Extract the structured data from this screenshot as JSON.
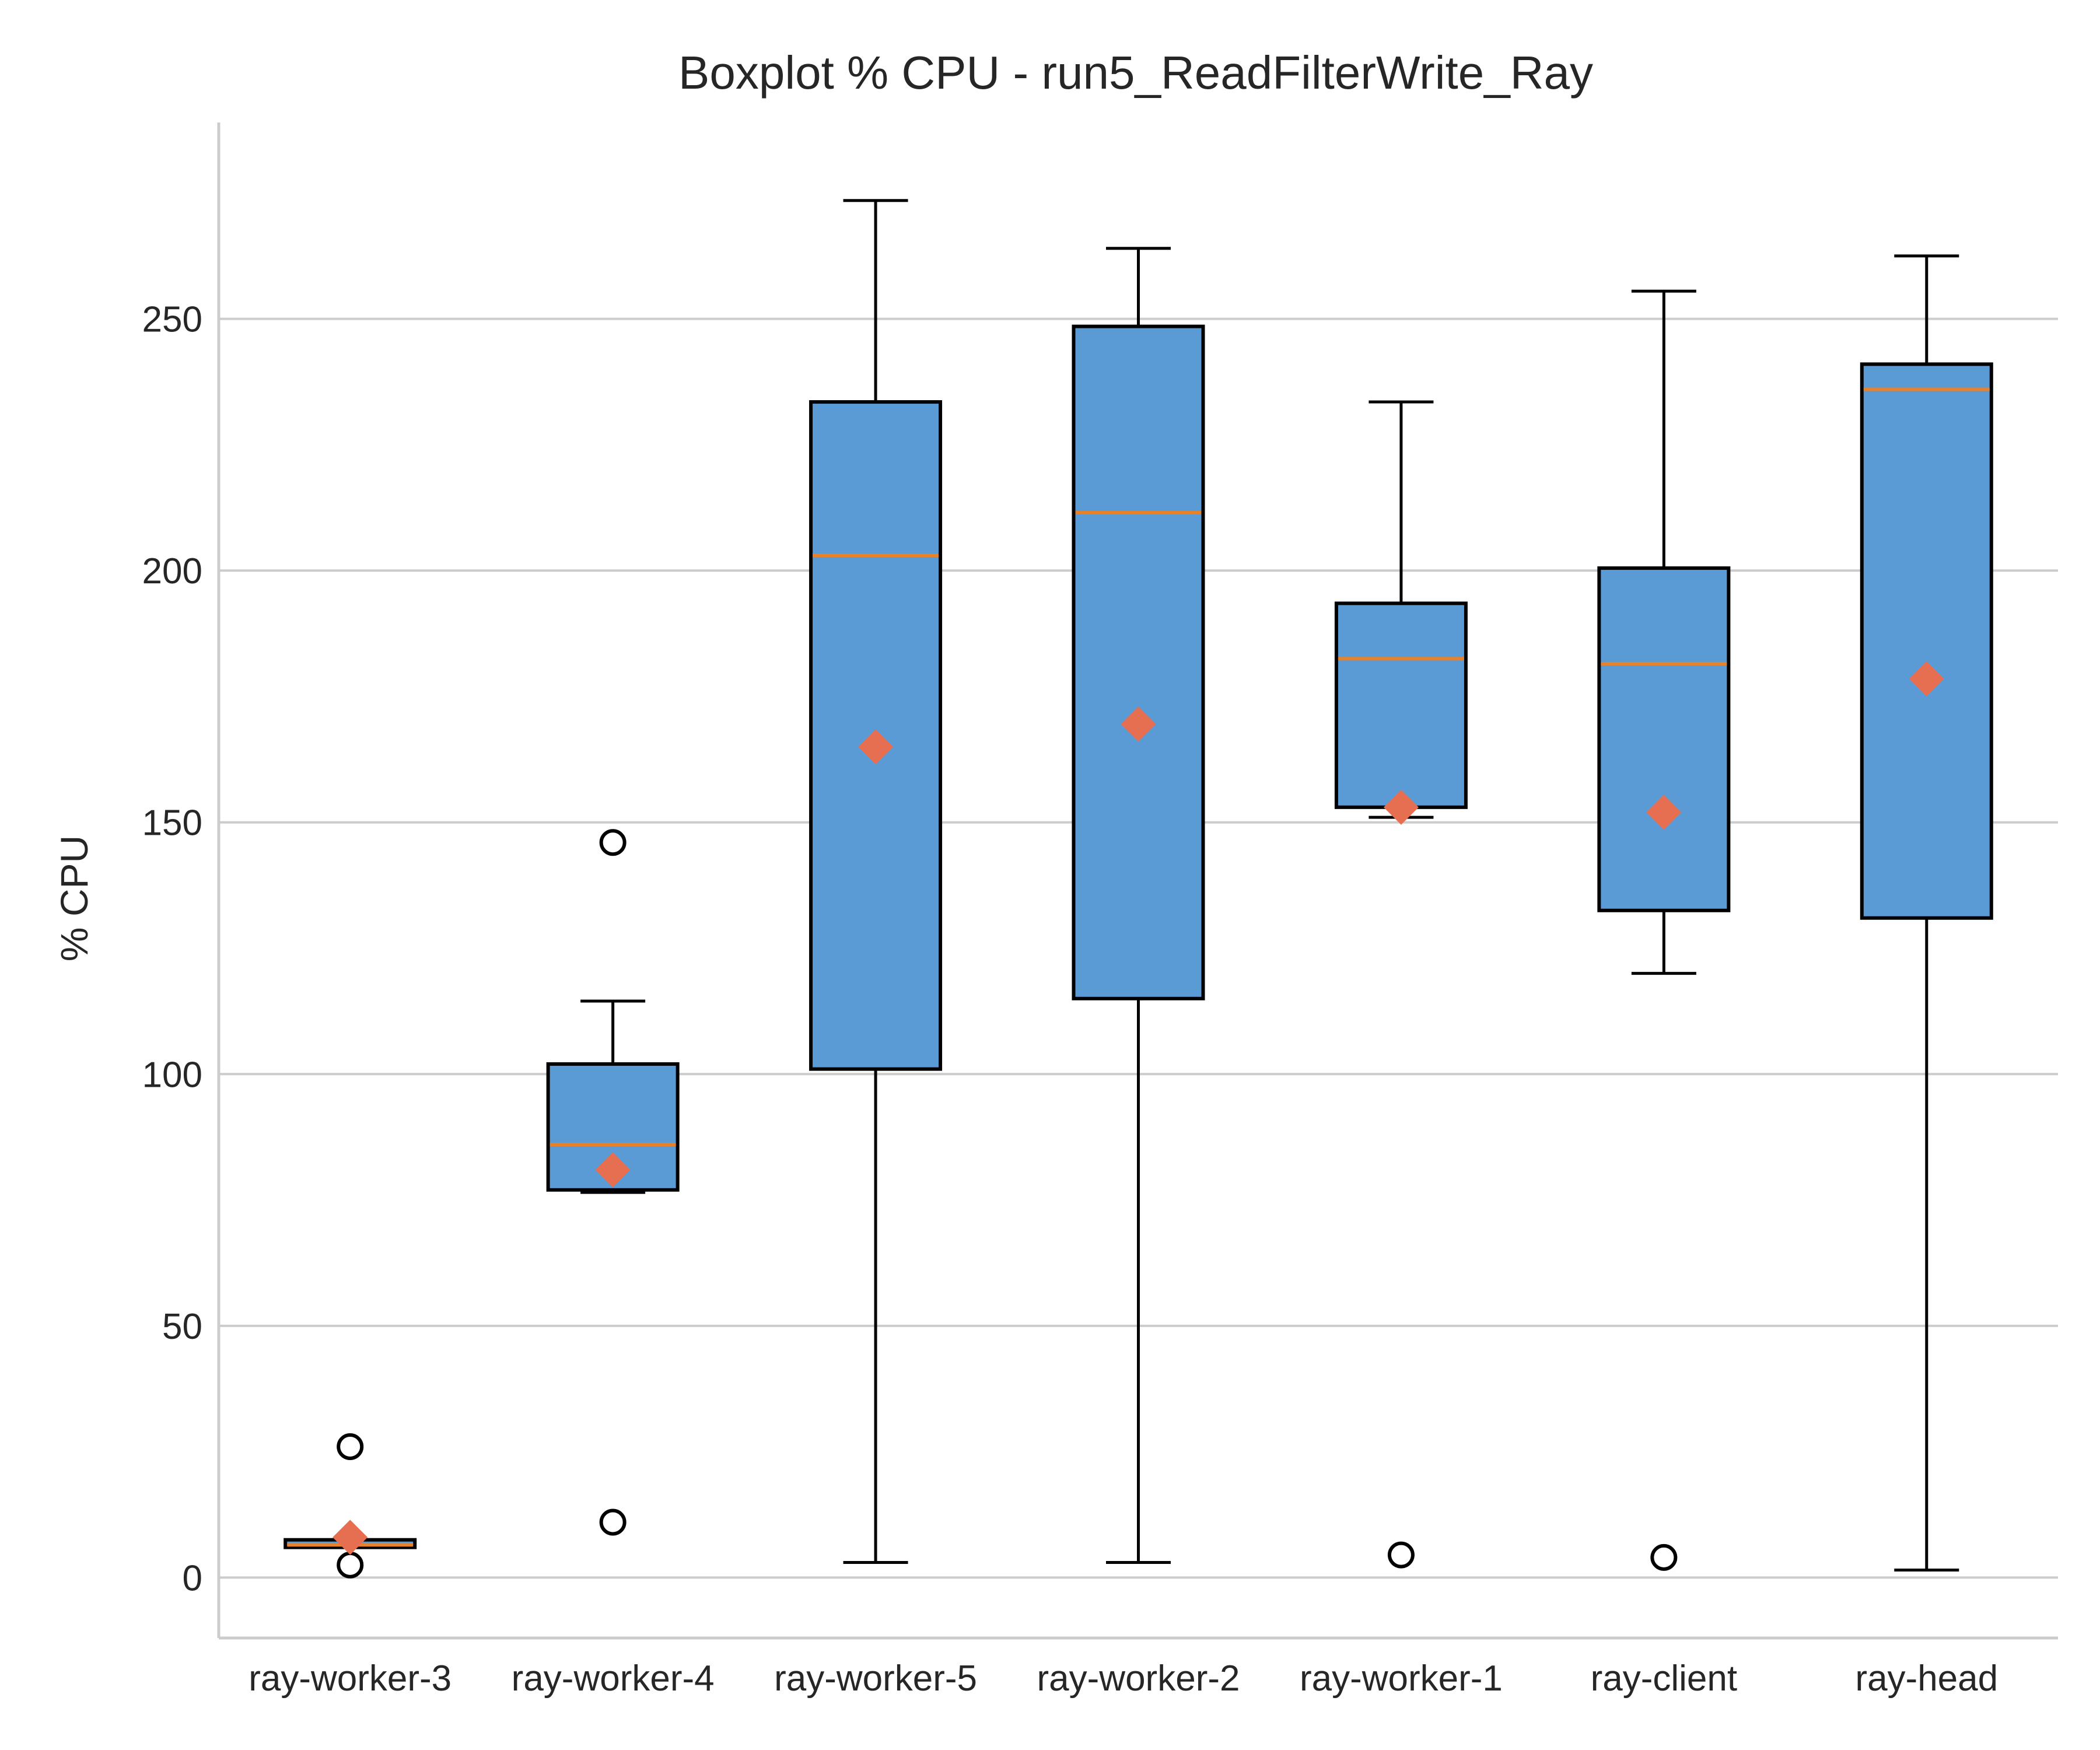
{
  "chart_data": {
    "type": "boxplot",
    "title": "Boxplot % CPU - run5_ReadFilterWrite_Ray",
    "xlabel": "",
    "ylabel": "% CPU",
    "ylim": [
      -12,
      289
    ],
    "yticks": [
      0,
      50,
      100,
      150,
      200,
      250
    ],
    "grid": "horizontal",
    "colors": {
      "box_fill": "#5b9bd5",
      "box_edge": "#000000",
      "median": "#e8822a",
      "mean_marker": "#e76f51",
      "grid": "#cccccc",
      "axis": "#cccccc"
    },
    "categories": [
      "ray-worker-3",
      "ray-worker-4",
      "ray-worker-5",
      "ray-worker-2",
      "ray-worker-1",
      "ray-client",
      "ray-head"
    ],
    "boxes": [
      {
        "label": "ray-worker-3",
        "whisker_low": 6,
        "q1": 6,
        "median": 6.5,
        "q3": 7.5,
        "whisker_high": 7.5,
        "mean": 8,
        "outliers": [
          26,
          2.5
        ]
      },
      {
        "label": "ray-worker-4",
        "whisker_low": 76.5,
        "q1": 77,
        "median": 86,
        "q3": 102,
        "whisker_high": 114.5,
        "mean": 81,
        "outliers": [
          146,
          11
        ]
      },
      {
        "label": "ray-worker-5",
        "whisker_low": 3,
        "q1": 101,
        "median": 203,
        "q3": 233.5,
        "whisker_high": 273.5,
        "mean": 165,
        "outliers": []
      },
      {
        "label": "ray-worker-2",
        "whisker_low": 3,
        "q1": 115,
        "median": 211.5,
        "q3": 248.5,
        "whisker_high": 264,
        "mean": 169.5,
        "outliers": []
      },
      {
        "label": "ray-worker-1",
        "whisker_low": 151,
        "q1": 153,
        "median": 182.5,
        "q3": 193.5,
        "whisker_high": 233.5,
        "mean": 153,
        "outliers": [
          4.5
        ]
      },
      {
        "label": "ray-client",
        "whisker_low": 120,
        "q1": 132.5,
        "median": 181.5,
        "q3": 200.5,
        "whisker_high": 255.5,
        "mean": 152,
        "outliers": [
          4
        ]
      },
      {
        "label": "ray-head",
        "whisker_low": 1.5,
        "q1": 131,
        "median": 236,
        "q3": 241,
        "whisker_high": 262.5,
        "mean": 178.5,
        "outliers": []
      }
    ]
  }
}
